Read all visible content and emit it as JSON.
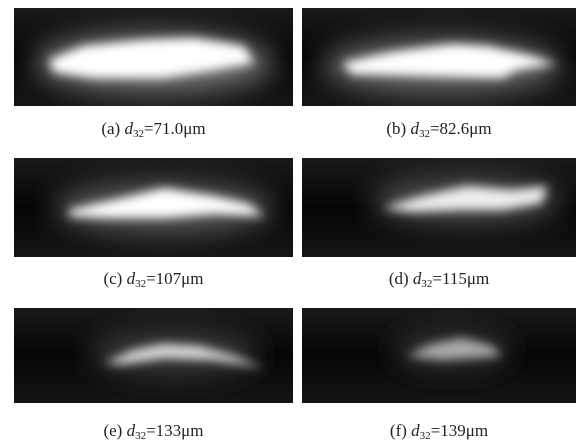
{
  "panels": [
    {
      "label": "(a)",
      "symbol": "d",
      "subscript": "32",
      "value": "=71.0μm"
    },
    {
      "label": "(b)",
      "symbol": "d",
      "subscript": "32",
      "value": "=82.6μm"
    },
    {
      "label": "(c)",
      "symbol": "d",
      "subscript": "32",
      "value": "=107μm"
    },
    {
      "label": "(d)",
      "symbol": "d",
      "subscript": "32",
      "value": "=115μm"
    },
    {
      "label": "(e)",
      "symbol": "d",
      "subscript": "32",
      "value": "=133μm"
    },
    {
      "label": "(f)",
      "symbol": "d",
      "subscript": "32",
      "value": "=139μm"
    }
  ]
}
